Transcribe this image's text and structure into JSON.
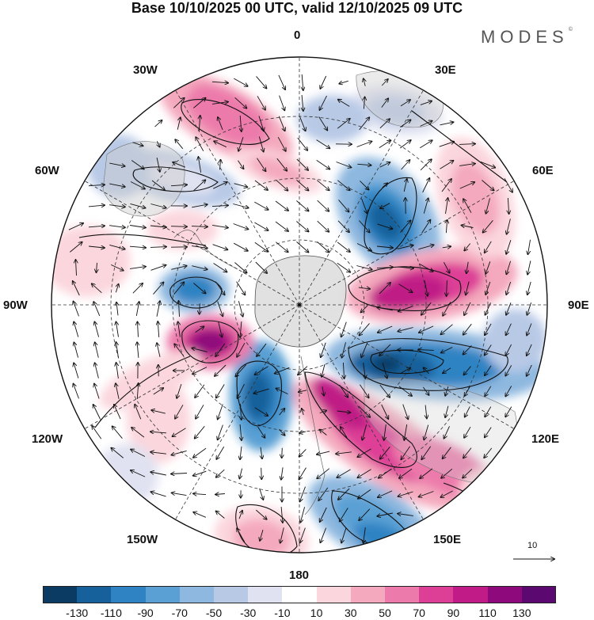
{
  "header": {
    "title": "Base 10/10/2025 00 UTC, valid 12/10/2025 09 UTC",
    "brand": "MODES",
    "brand_mark": "©"
  },
  "longitude_labels": {
    "lon_0": "0",
    "lon_30e": "30E",
    "lon_60e": "60E",
    "lon_90e": "90E",
    "lon_120e": "120E",
    "lon_150e": "150E",
    "lon_180": "180",
    "lon_150w": "150W",
    "lon_120w": "120W",
    "lon_90w": "90W",
    "lon_60w": "60W",
    "lon_30w": "30W"
  },
  "reference_vector": {
    "label": "10"
  },
  "colorbar": {
    "colors": [
      "#0b3a63",
      "#16609b",
      "#2f83c3",
      "#5aa0d4",
      "#8eb8df",
      "#b8c9e6",
      "#e0e2f1",
      "#ffffff",
      "#fbd6dd",
      "#f4a9be",
      "#ec7aab",
      "#dd3f96",
      "#c01b86",
      "#8e0a7c",
      "#5b0870"
    ],
    "ticks": [
      "-130",
      "-110",
      "-90",
      "-70",
      "-50",
      "-30",
      "-10",
      "10",
      "30",
      "50",
      "70",
      "90",
      "110",
      "130"
    ]
  }
}
